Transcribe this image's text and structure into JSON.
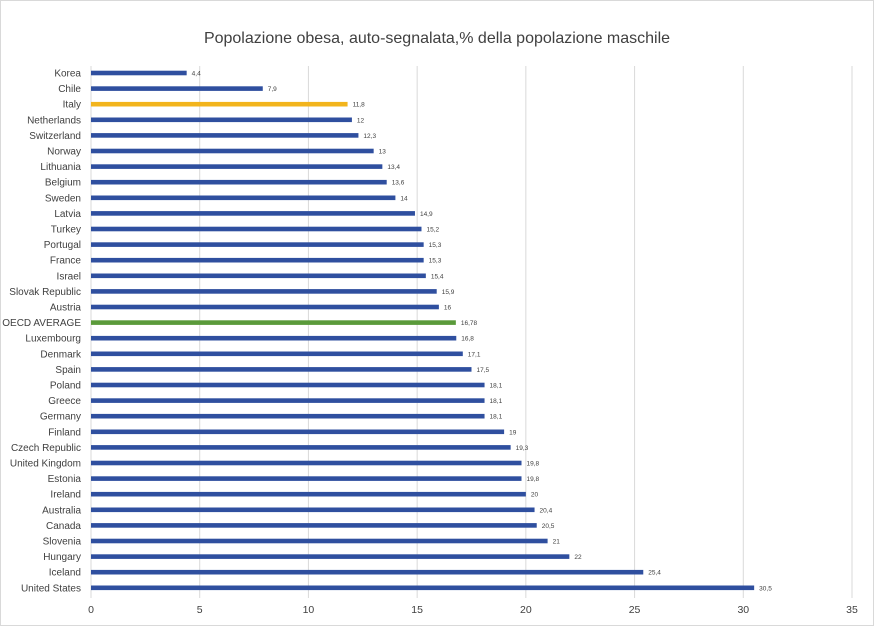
{
  "chart_data": {
    "type": "bar",
    "orientation": "horizontal",
    "title": "Popolazione obesa, auto-segnalata,% della popolazione maschile",
    "categories": [
      "Korea",
      "Chile",
      "Italy",
      "Netherlands",
      "Switzerland",
      "Norway",
      "Lithuania",
      "Belgium",
      "Sweden",
      "Latvia",
      "Turkey",
      "Portugal",
      "France",
      "Israel",
      "Slovak Republic",
      "Austria",
      "OECD AVERAGE",
      "Luxembourg",
      "Denmark",
      "Spain",
      "Poland",
      "Greece",
      "Germany",
      "Finland",
      "Czech Republic",
      "United Kingdom",
      "Estonia",
      "Ireland",
      "Australia",
      "Canada",
      "Slovenia",
      "Hungary",
      "Iceland",
      "United States"
    ],
    "values": [
      4.4,
      7.9,
      11.8,
      12,
      12.3,
      13,
      13.4,
      13.6,
      14,
      14.9,
      15.2,
      15.3,
      15.3,
      15.4,
      15.9,
      16,
      16.78,
      16.8,
      17.1,
      17.5,
      18.1,
      18.1,
      18.1,
      19,
      19.3,
      19.8,
      19.8,
      20,
      20.4,
      20.5,
      21,
      22,
      25.4,
      30.5
    ],
    "value_labels": [
      "4,4",
      "7,9",
      "11,8",
      "12",
      "12,3",
      "13",
      "13,4",
      "13,6",
      "14",
      "14,9",
      "15,2",
      "15,3",
      "15,3",
      "15,4",
      "15,9",
      "16",
      "16,78",
      "16,8",
      "17,1",
      "17,5",
      "18,1",
      "18,1",
      "18,1",
      "19",
      "19,3",
      "19,8",
      "19,8",
      "20",
      "20,4",
      "20,5",
      "21",
      "22",
      "25,4",
      "30,5"
    ],
    "xlim": [
      0,
      35
    ],
    "xticks": [
      0,
      5,
      10,
      15,
      20,
      25,
      30,
      35
    ],
    "grid": true,
    "colors": {
      "default": "#2f4f9f",
      "highlight_italy": "#f2b41c",
      "highlight_oecd": "#5a9a3a",
      "grid": "#d9d9d9"
    },
    "highlights": {
      "Italy": "highlight_italy",
      "OECD AVERAGE": "highlight_oecd"
    }
  }
}
